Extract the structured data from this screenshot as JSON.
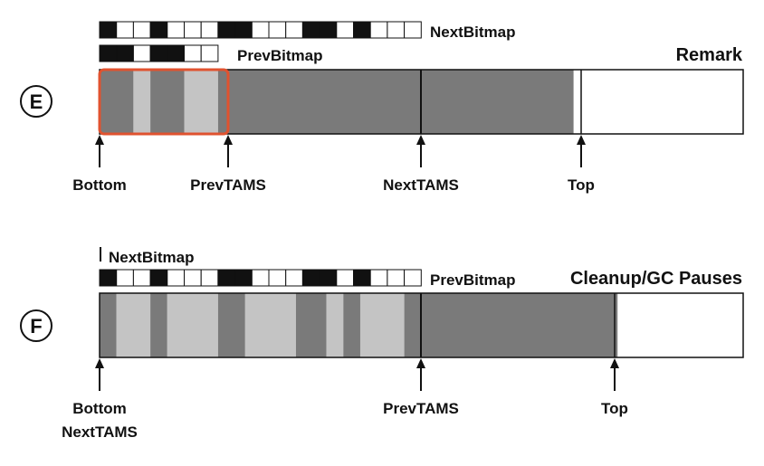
{
  "colors": {
    "ink": "#111111",
    "live": "#7a7a7a",
    "dead": "#c4c4c4",
    "free": "#ffffff",
    "highlight": "#e0522f"
  },
  "panels": [
    {
      "step": "E",
      "phase": "Remark",
      "bitmaps": [
        {
          "label": "NextBitmap",
          "cells": [
            1,
            0,
            0,
            1,
            0,
            0,
            0,
            1,
            1,
            0,
            0,
            0,
            1,
            1,
            0,
            1,
            0,
            0,
            0
          ]
        },
        {
          "label": "PrevBitmap",
          "cells": [
            1,
            1,
            0,
            1,
            1,
            0,
            0
          ]
        }
      ],
      "segments": [
        {
          "kind": "live",
          "from": 0.0,
          "to": 2.0
        },
        {
          "kind": "dead",
          "from": 2.0,
          "to": 3.0
        },
        {
          "kind": "live",
          "from": 3.0,
          "to": 5.0
        },
        {
          "kind": "dead",
          "from": 5.0,
          "to": 7.0
        },
        {
          "kind": "live",
          "from": 7.0,
          "to": 19.0
        },
        {
          "kind": "live",
          "from": 19.0,
          "to": 28.0
        }
      ],
      "pointers": [
        {
          "labels": [
            "Bottom"
          ],
          "at": 0.0
        },
        {
          "labels": [
            "PrevTAMS"
          ],
          "at": 7.6
        },
        {
          "labels": [
            "NextTAMS"
          ],
          "at": 19.0
        },
        {
          "labels": [
            "Top"
          ],
          "at": 28.6
        }
      ]
    },
    {
      "step": "F",
      "phase": "Cleanup/GC Pauses",
      "bitmaps": [
        {
          "label": "NextBitmap",
          "cells": []
        },
        {
          "label": "PrevBitmap",
          "cells": [
            1,
            0,
            0,
            1,
            0,
            0,
            0,
            1,
            1,
            0,
            0,
            0,
            1,
            1,
            0,
            1,
            0,
            0,
            0
          ]
        }
      ],
      "segments": [
        {
          "kind": "live",
          "from": 0.0,
          "to": 1.0
        },
        {
          "kind": "dead",
          "from": 1.0,
          "to": 3.0
        },
        {
          "kind": "live",
          "from": 3.0,
          "to": 4.0
        },
        {
          "kind": "dead",
          "from": 4.0,
          "to": 7.0
        },
        {
          "kind": "live",
          "from": 7.0,
          "to": 8.6
        },
        {
          "kind": "dead",
          "from": 8.6,
          "to": 11.6
        },
        {
          "kind": "live",
          "from": 11.6,
          "to": 13.4
        },
        {
          "kind": "dead",
          "from": 13.4,
          "to": 14.4
        },
        {
          "kind": "live",
          "from": 14.4,
          "to": 15.4
        },
        {
          "kind": "dead",
          "from": 15.4,
          "to": 18.0
        },
        {
          "kind": "live",
          "from": 18.0,
          "to": 19.0
        },
        {
          "kind": "live",
          "from": 19.0,
          "to": 30.6
        }
      ],
      "pointers": [
        {
          "labels": [
            "Bottom",
            "NextTAMS"
          ],
          "at": 0.0
        },
        {
          "labels": [
            "PrevTAMS"
          ],
          "at": 19.0
        },
        {
          "labels": [
            "Top"
          ],
          "at": 30.6
        }
      ]
    }
  ]
}
